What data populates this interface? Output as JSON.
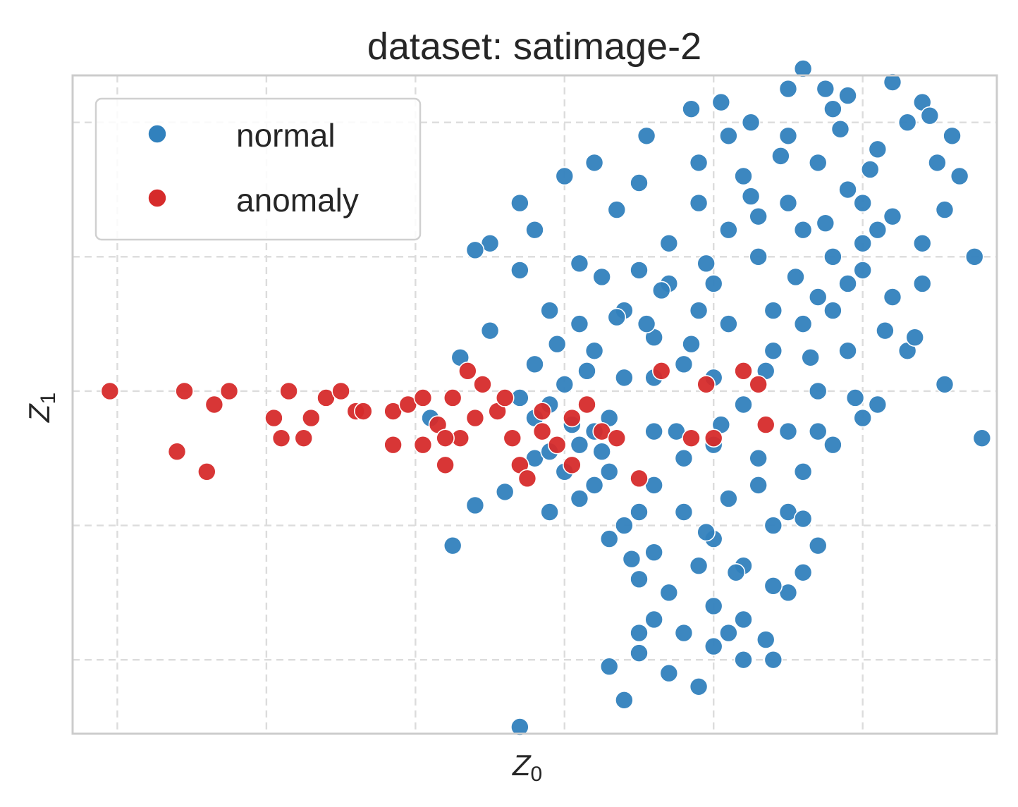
{
  "chart_data": {
    "type": "scatter",
    "title": "dataset: satimage-2",
    "xlabel": "Z",
    "xlabel_sub": "0",
    "ylabel": "Z",
    "ylabel_sub": "1",
    "xlim": [
      -3.3,
      2.9
    ],
    "ylim": [
      -2.55,
      2.35
    ],
    "x_ticks": [
      -3,
      -2,
      -1,
      0,
      1,
      2
    ],
    "y_ticks": [
      -2,
      -1,
      0,
      1,
      2
    ],
    "show_tick_labels": false,
    "grid": true,
    "legend_position": "top-left",
    "series": [
      {
        "name": "normal",
        "color": "#3181bd",
        "points": [
          [
            -0.1,
            -0.1
          ],
          [
            0.0,
            0.05
          ],
          [
            0.2,
            0.3
          ],
          [
            0.4,
            0.6
          ],
          [
            0.3,
            -0.2
          ],
          [
            0.1,
            -0.4
          ],
          [
            -0.2,
            0.2
          ],
          [
            0.5,
            0.9
          ],
          [
            0.6,
            0.4
          ],
          [
            0.7,
            1.1
          ],
          [
            0.8,
            0.2
          ],
          [
            0.9,
            1.4
          ],
          [
            1.0,
            0.8
          ],
          [
            1.1,
            0.5
          ],
          [
            1.2,
            1.6
          ],
          [
            1.3,
            1.0
          ],
          [
            1.4,
            0.3
          ],
          [
            1.5,
            1.9
          ],
          [
            1.6,
            1.2
          ],
          [
            1.7,
            0.7
          ],
          [
            1.8,
            2.1
          ],
          [
            1.9,
            1.5
          ],
          [
            2.0,
            0.9
          ],
          [
            2.1,
            1.8
          ],
          [
            2.2,
            1.3
          ],
          [
            2.3,
            2.0
          ],
          [
            2.4,
            1.1
          ],
          [
            2.5,
            1.7
          ],
          [
            2.6,
            1.9
          ],
          [
            2.75,
            1.0
          ],
          [
            2.8,
            -0.35
          ],
          [
            2.55,
            0.05
          ],
          [
            0.6,
            -0.7
          ],
          [
            0.8,
            -0.9
          ],
          [
            1.0,
            -1.1
          ],
          [
            1.2,
            -1.3
          ],
          [
            1.4,
            -1.0
          ],
          [
            1.6,
            -0.6
          ],
          [
            1.8,
            -0.4
          ],
          [
            2.0,
            -0.2
          ],
          [
            0.2,
            -0.7
          ],
          [
            0.0,
            -0.6
          ],
          [
            -0.2,
            -0.5
          ],
          [
            0.4,
            -1.0
          ],
          [
            0.6,
            -1.2
          ],
          [
            0.9,
            -1.3
          ],
          [
            1.1,
            -0.8
          ],
          [
            1.3,
            -0.5
          ],
          [
            1.5,
            -0.3
          ],
          [
            1.7,
            0.0
          ],
          [
            0.3,
            -1.1
          ],
          [
            0.5,
            -1.4
          ],
          [
            0.7,
            -1.5
          ],
          [
            1.0,
            -1.6
          ],
          [
            1.2,
            -1.7
          ],
          [
            1.4,
            -2.0
          ],
          [
            1.5,
            -1.5
          ],
          [
            0.9,
            -2.2
          ],
          [
            0.7,
            -2.1
          ],
          [
            0.4,
            -2.3
          ],
          [
            0.3,
            -2.05
          ],
          [
            0.5,
            -1.95
          ],
          [
            -0.3,
            -2.5
          ],
          [
            -0.75,
            -1.15
          ],
          [
            -0.6,
            -0.85
          ],
          [
            -0.4,
            -0.75
          ],
          [
            -0.9,
            -0.2
          ],
          [
            -0.7,
            0.25
          ],
          [
            -0.5,
            0.45
          ],
          [
            -0.3,
            0.9
          ],
          [
            -0.5,
            1.1
          ],
          [
            -0.6,
            1.05
          ],
          [
            -0.2,
            1.2
          ],
          [
            0.1,
            0.95
          ],
          [
            0.35,
            1.35
          ],
          [
            0.5,
            1.55
          ],
          [
            0.55,
            1.9
          ],
          [
            0.85,
            2.1
          ],
          [
            1.05,
            2.15
          ],
          [
            1.25,
            2.0
          ],
          [
            1.5,
            2.25
          ],
          [
            1.75,
            2.25
          ],
          [
            1.6,
            2.4
          ],
          [
            2.2,
            2.3
          ],
          [
            2.4,
            2.15
          ],
          [
            2.45,
            2.05
          ],
          [
            2.65,
            1.6
          ],
          [
            2.55,
            1.35
          ],
          [
            1.9,
            2.2
          ],
          [
            0.2,
            1.7
          ],
          [
            0.0,
            1.6
          ],
          [
            -0.3,
            1.4
          ],
          [
            0.9,
            1.7
          ],
          [
            1.1,
            1.9
          ],
          [
            1.3,
            1.3
          ],
          [
            0.7,
            0.8
          ],
          [
            0.4,
            0.1
          ],
          [
            0.1,
            0.5
          ],
          [
            0.2,
            -0.3
          ],
          [
            0.6,
            -0.3
          ],
          [
            1.0,
            0.1
          ],
          [
            1.4,
            0.6
          ],
          [
            1.8,
            1.0
          ],
          [
            2.2,
            0.7
          ],
          [
            2.3,
            0.3
          ],
          [
            2.1,
            -0.1
          ],
          [
            1.9,
            0.3
          ],
          [
            1.6,
            0.5
          ],
          [
            1.2,
            -0.1
          ],
          [
            0.8,
            -0.5
          ],
          [
            1.0,
            -0.4
          ],
          [
            1.3,
            -0.7
          ],
          [
            1.5,
            -0.9
          ],
          [
            1.7,
            -0.3
          ],
          [
            0.5,
            -0.9
          ],
          [
            0.3,
            -0.6
          ],
          [
            0.6,
            0.1
          ],
          [
            0.9,
            0.6
          ],
          [
            1.1,
            1.2
          ],
          [
            1.5,
            1.4
          ],
          [
            1.7,
            1.7
          ],
          [
            2.0,
            1.4
          ],
          [
            2.1,
            1.2
          ],
          [
            1.8,
            0.6
          ],
          [
            2.4,
            0.8
          ],
          [
            2.35,
            0.4
          ],
          [
            0.1,
            -0.8
          ],
          [
            -0.1,
            -0.9
          ],
          [
            0.45,
            -1.25
          ],
          [
            1.35,
            -1.85
          ],
          [
            1.15,
            -1.35
          ],
          [
            0.95,
            -1.05
          ],
          [
            0.75,
            -0.3
          ],
          [
            0.55,
            0.5
          ],
          [
            0.95,
            0.95
          ],
          [
            1.25,
            1.45
          ],
          [
            1.45,
            1.75
          ],
          [
            1.85,
            1.95
          ],
          [
            2.05,
            1.65
          ],
          [
            2.15,
            0.45
          ],
          [
            1.95,
            -0.05
          ],
          [
            1.65,
            0.25
          ],
          [
            1.35,
            0.15
          ],
          [
            1.05,
            -0.25
          ],
          [
            0.85,
            0.35
          ],
          [
            0.65,
            0.75
          ],
          [
            0.35,
            0.55
          ],
          [
            0.25,
            0.85
          ],
          [
            0.15,
            0.15
          ],
          [
            -0.05,
            0.35
          ],
          [
            1.6,
            -1.35
          ],
          [
            1.6,
            -0.95
          ],
          [
            1.4,
            -1.45
          ],
          [
            1.2,
            -2.0
          ],
          [
            1.7,
            -1.15
          ],
          [
            0.6,
            -1.7
          ],
          [
            0.8,
            -1.8
          ],
          [
            0.5,
            -1.8
          ],
          [
            1.1,
            -1.8
          ],
          [
            1.0,
            -1.9
          ],
          [
            -0.2,
            -0.2
          ],
          [
            -0.3,
            -0.05
          ],
          [
            0.05,
            -0.25
          ],
          [
            0.25,
            -0.45
          ],
          [
            -0.1,
            0.6
          ],
          [
            -0.1,
            -0.45
          ],
          [
            1.9,
            0.8
          ],
          [
            2.0,
            1.1
          ],
          [
            1.55,
            0.85
          ],
          [
            1.75,
            1.25
          ]
        ]
      },
      {
        "name": "anomaly",
        "color": "#d62b2b",
        "points": [
          [
            -3.05,
            0.0
          ],
          [
            -2.55,
            0.0
          ],
          [
            -2.35,
            -0.1
          ],
          [
            -2.25,
            0.0
          ],
          [
            -2.6,
            -0.45
          ],
          [
            -2.4,
            -0.6
          ],
          [
            -1.85,
            0.0
          ],
          [
            -1.7,
            -0.2
          ],
          [
            -1.6,
            -0.05
          ],
          [
            -1.95,
            -0.2
          ],
          [
            -1.5,
            0.0
          ],
          [
            -1.4,
            -0.15
          ],
          [
            -1.35,
            -0.15
          ],
          [
            -1.15,
            -0.15
          ],
          [
            -1.05,
            -0.1
          ],
          [
            -0.95,
            -0.05
          ],
          [
            -0.85,
            -0.25
          ],
          [
            -0.75,
            -0.05
          ],
          [
            -1.15,
            -0.4
          ],
          [
            -0.95,
            -0.4
          ],
          [
            -0.8,
            -0.55
          ],
          [
            -0.7,
            -0.35
          ],
          [
            -0.65,
            0.15
          ],
          [
            -0.6,
            -0.2
          ],
          [
            -0.55,
            0.05
          ],
          [
            -0.45,
            -0.15
          ],
          [
            -0.4,
            -0.05
          ],
          [
            -0.35,
            -0.35
          ],
          [
            -0.3,
            -0.55
          ],
          [
            -0.25,
            -0.65
          ],
          [
            -0.15,
            -0.3
          ],
          [
            -0.05,
            -0.4
          ],
          [
            0.05,
            -0.55
          ],
          [
            0.15,
            -0.1
          ],
          [
            0.25,
            -0.3
          ],
          [
            0.35,
            -0.35
          ],
          [
            0.5,
            -0.65
          ],
          [
            0.65,
            0.15
          ],
          [
            0.95,
            0.05
          ],
          [
            1.2,
            0.15
          ],
          [
            1.3,
            0.05
          ],
          [
            1.35,
            -0.25
          ],
          [
            0.85,
            -0.35
          ],
          [
            -1.9,
            -0.35
          ],
          [
            -1.75,
            -0.35
          ],
          [
            -0.8,
            -0.35
          ],
          [
            -0.15,
            -0.15
          ],
          [
            0.05,
            -0.2
          ],
          [
            1.0,
            -0.35
          ]
        ]
      }
    ]
  }
}
